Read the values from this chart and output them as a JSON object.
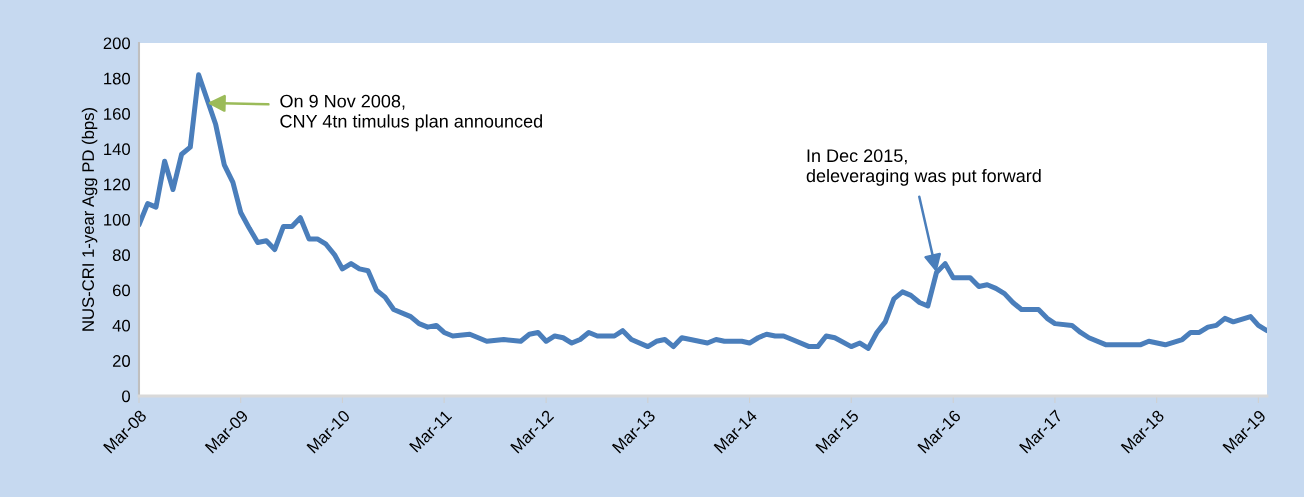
{
  "chart_data": {
    "type": "line",
    "ylabel": "NUS-CRI 1-year Agg PD (bps)",
    "x": [
      "2008-03",
      "2008-04",
      "2008-05",
      "2008-06",
      "2008-07",
      "2008-08",
      "2008-09",
      "2008-10",
      "2008-12",
      "2009-01",
      "2009-02",
      "2009-03",
      "2009-04",
      "2009-05",
      "2009-06",
      "2009-07",
      "2009-08",
      "2009-09",
      "2009-10",
      "2009-11",
      "2009-12",
      "2010-01",
      "2010-02",
      "2010-03",
      "2010-04",
      "2010-05",
      "2010-06",
      "2010-07",
      "2010-08",
      "2010-09",
      "2010-11",
      "2010-12",
      "2011-01",
      "2011-02",
      "2011-03",
      "2011-04",
      "2011-06",
      "2011-08",
      "2011-10",
      "2011-12",
      "2012-01",
      "2012-02",
      "2012-03",
      "2012-04",
      "2012-05",
      "2012-06",
      "2012-07",
      "2012-08",
      "2012-09",
      "2012-11",
      "2012-12",
      "2013-01",
      "2013-03",
      "2013-04",
      "2013-05",
      "2013-06",
      "2013-07",
      "2013-08",
      "2013-10",
      "2013-11",
      "2013-12",
      "2014-02",
      "2014-03",
      "2014-04",
      "2014-05",
      "2014-06",
      "2014-07",
      "2014-08",
      "2014-10",
      "2014-11",
      "2014-12",
      "2015-01",
      "2015-03",
      "2015-04",
      "2015-05",
      "2015-06",
      "2015-07",
      "2015-08",
      "2015-09",
      "2015-10",
      "2015-11",
      "2015-12",
      "2016-01",
      "2016-02",
      "2016-03",
      "2016-05",
      "2016-06",
      "2016-07",
      "2016-08",
      "2016-09",
      "2016-10",
      "2016-11",
      "2017-01",
      "2017-02",
      "2017-03",
      "2017-05",
      "2017-06",
      "2017-07",
      "2017-09",
      "2017-10",
      "2017-11",
      "2018-01",
      "2018-02",
      "2018-04",
      "2018-06",
      "2018-07",
      "2018-08",
      "2018-09",
      "2018-10",
      "2018-11",
      "2018-12",
      "2019-02",
      "2019-03",
      "2019-04"
    ],
    "series": [
      {
        "color": "#4a7ebb",
        "values": [
          97,
          109,
          107,
          133,
          117,
          137,
          141,
          182,
          154,
          131,
          121,
          104,
          95,
          87,
          88,
          83,
          96,
          96,
          101,
          89,
          89,
          86,
          80,
          72,
          75,
          72,
          71,
          60,
          56,
          49,
          45,
          41,
          39,
          40,
          36,
          34,
          35,
          31,
          32,
          31,
          35,
          36,
          31,
          34,
          33,
          30,
          32,
          36,
          34,
          34,
          37,
          32,
          28,
          31,
          32,
          28,
          33,
          32,
          30,
          32,
          31,
          31,
          30,
          33,
          35,
          34,
          34,
          32,
          28,
          28,
          34,
          33,
          28,
          30,
          27,
          36,
          42,
          55,
          59,
          57,
          53,
          51,
          70,
          75,
          67,
          67,
          62,
          63,
          61,
          58,
          53,
          49,
          49,
          44,
          41,
          40,
          36,
          33,
          29,
          29,
          29,
          29,
          31,
          29,
          32,
          36,
          36,
          39,
          40,
          44,
          42,
          45,
          40,
          37
        ]
      }
    ],
    "xlim": [
      "2008-03",
      "2019-04"
    ],
    "xticks": [
      {
        "value": "2008-03",
        "label": "Mar-08"
      },
      {
        "value": "2009-03",
        "label": "Mar-09"
      },
      {
        "value": "2010-03",
        "label": "Mar-10"
      },
      {
        "value": "2011-03",
        "label": "Mar-11"
      },
      {
        "value": "2012-03",
        "label": "Mar-12"
      },
      {
        "value": "2013-03",
        "label": "Mar-13"
      },
      {
        "value": "2014-03",
        "label": "Mar-14"
      },
      {
        "value": "2015-03",
        "label": "Mar-15"
      },
      {
        "value": "2016-03",
        "label": "Mar-16"
      },
      {
        "value": "2017-03",
        "label": "Mar-17"
      },
      {
        "value": "2018-03",
        "label": "Mar-18"
      },
      {
        "value": "2019-03",
        "label": "Mar-19"
      }
    ],
    "ylim": [
      0,
      200
    ],
    "yticks": [
      0,
      20,
      40,
      60,
      80,
      100,
      120,
      140,
      160,
      180,
      200
    ],
    "marker": "none",
    "line_style": "solid",
    "annotations": [
      {
        "text": "On 9 Nov 2008,\nCNY 4tn timulus plan announced",
        "x": "2008-11",
        "y": 166
      },
      {
        "text": "In Dec 2015,\ndeleveraging was put forward",
        "x": "2016-01",
        "y": 70
      }
    ]
  }
}
